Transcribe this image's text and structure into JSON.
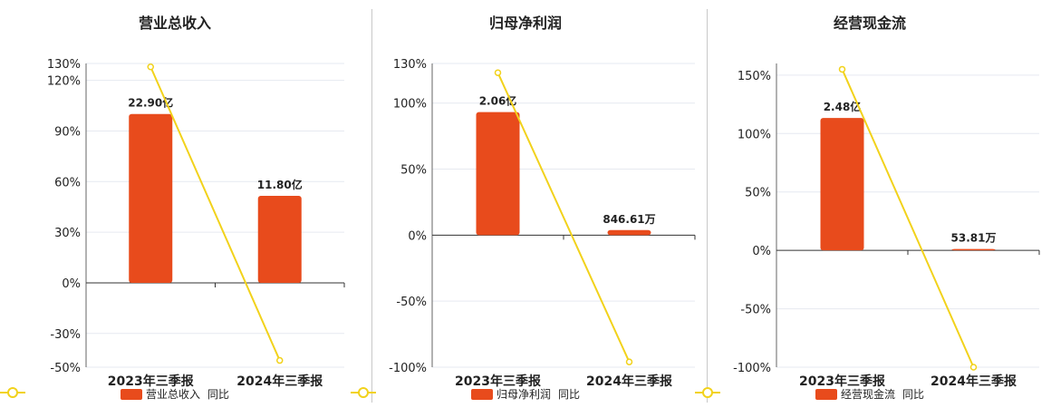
{
  "chart_data": [
    {
      "type": "bar",
      "title": "营业总收入",
      "categories": [
        "2023年三季报",
        "2024年三季报"
      ],
      "series": [
        {
          "name": "营业总收入",
          "type": "bar",
          "values": [
            22.9,
            11.8
          ],
          "unit": "亿",
          "labels": [
            "22.90亿",
            "11.80亿"
          ],
          "color": "#e84b1c"
        },
        {
          "name": "同比",
          "type": "line",
          "values": [
            128,
            -46
          ],
          "unit": "%",
          "color": "#f2d21b"
        }
      ],
      "bar_axis_max": 23.8,
      "ylim": [
        -50,
        130
      ],
      "yticks": [
        130,
        120,
        90,
        60,
        30,
        0,
        -30,
        -50
      ],
      "ytick_labels": [
        "130%",
        "120%",
        "90%",
        "60%",
        "30%",
        "0%",
        "-30%",
        "-50%"
      ],
      "legend": [
        "营业总收入",
        "同比"
      ]
    },
    {
      "type": "bar",
      "title": "归母净利润",
      "categories": [
        "2023年三季报",
        "2024年三季报"
      ],
      "series": [
        {
          "name": "归母净利润",
          "type": "bar",
          "values": [
            2.06,
            0.0846
          ],
          "unit": "亿",
          "labels": [
            "2.06亿",
            "846.61万"
          ],
          "color": "#e84b1c"
        },
        {
          "name": "同比",
          "type": "line",
          "values": [
            123,
            -96
          ],
          "unit": "%",
          "color": "#f2d21b"
        }
      ],
      "bar_axis_max": 2.3,
      "ylim": [
        -100,
        130
      ],
      "yticks": [
        130,
        100,
        50,
        0,
        -50,
        -100
      ],
      "ytick_labels": [
        "130%",
        "100%",
        "50%",
        "0%",
        "-50%",
        "-100%"
      ],
      "legend": [
        "归母净利润",
        "同比"
      ]
    },
    {
      "type": "bar",
      "title": "经营现金流",
      "categories": [
        "2023年三季报",
        "2024年三季报"
      ],
      "series": [
        {
          "name": "经营现金流",
          "type": "bar",
          "values": [
            2.48,
            0.0054
          ],
          "unit": "亿",
          "labels": [
            "2.48亿",
            "53.81万"
          ],
          "color": "#e84b1c"
        },
        {
          "name": "同比",
          "type": "line",
          "values": [
            155,
            -100
          ],
          "unit": "%",
          "color": "#f2d21b"
        }
      ],
      "bar_axis_max": 2.8,
      "ylim": [
        -100,
        160
      ],
      "yticks": [
        150,
        100,
        50,
        0,
        -50,
        -100
      ],
      "ytick_labels": [
        "150%",
        "100%",
        "50%",
        "0%",
        "-50%",
        "-100%"
      ],
      "legend": [
        "经营现金流",
        "同比"
      ]
    }
  ]
}
